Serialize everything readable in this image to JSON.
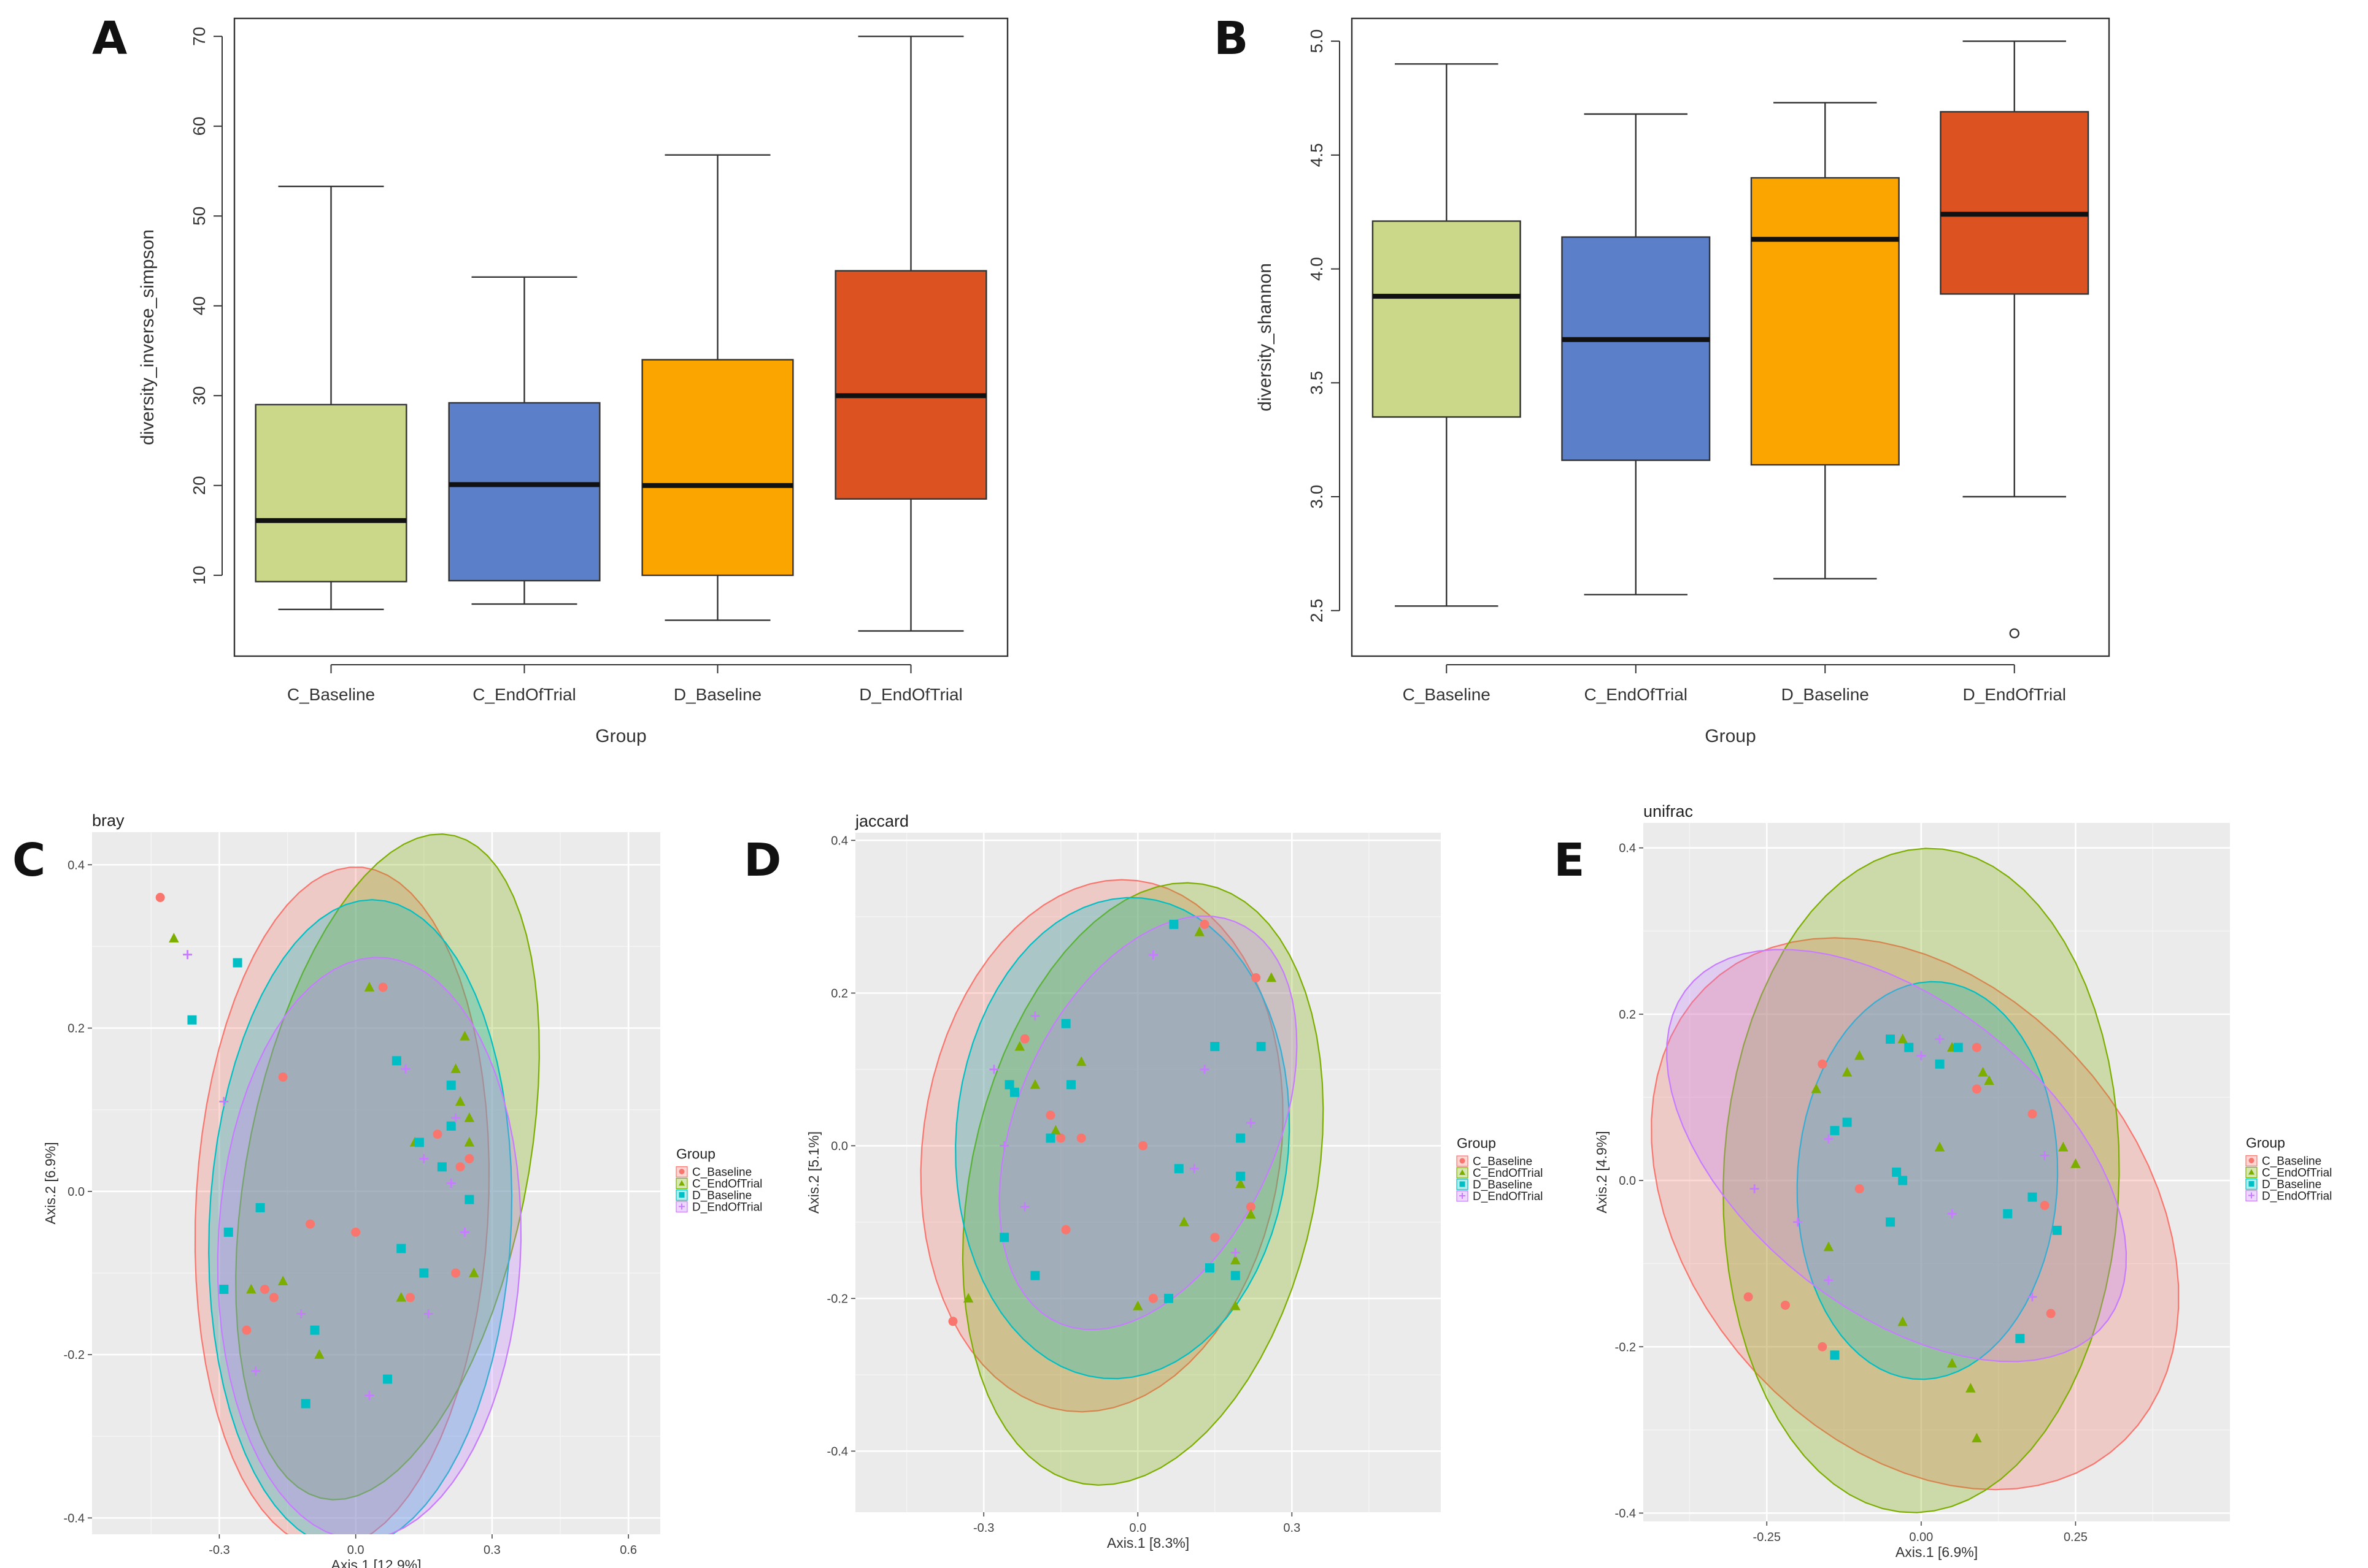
{
  "chart_data": [
    {
      "panel": "A",
      "type": "boxplot",
      "xlabel": "Group",
      "ylabel": "diversity_inverse_simpson",
      "categories": [
        "C_Baseline",
        "C_EndOfTrial",
        "D_Baseline",
        "D_EndOfTrial"
      ],
      "colors": [
        "#cbd889",
        "#5b7fc9",
        "#fba500",
        "#dc5221"
      ],
      "boxes": [
        {
          "min": 6.2,
          "q1": 9.3,
          "median": 16.1,
          "q3": 29.0,
          "max": 53.3,
          "outliers": []
        },
        {
          "min": 6.8,
          "q1": 9.4,
          "median": 20.1,
          "q3": 29.2,
          "max": 43.2,
          "outliers": []
        },
        {
          "min": 5.0,
          "q1": 10.0,
          "median": 20.0,
          "q3": 34.0,
          "max": 56.8,
          "outliers": []
        },
        {
          "min": 3.8,
          "q1": 18.5,
          "median": 30.0,
          "q3": 43.9,
          "max": 70.0,
          "outliers": []
        }
      ],
      "ylim": [
        1.0,
        72.0
      ],
      "yticks": [
        10,
        20,
        30,
        40,
        50,
        60,
        70
      ]
    },
    {
      "panel": "B",
      "type": "boxplot",
      "xlabel": "Group",
      "ylabel": "diversity_shannon",
      "categories": [
        "C_Baseline",
        "C_EndOfTrial",
        "D_Baseline",
        "D_EndOfTrial"
      ],
      "colors": [
        "#cbd889",
        "#5b7fc9",
        "#fba500",
        "#dc5221"
      ],
      "boxes": [
        {
          "min": 2.52,
          "q1": 3.35,
          "median": 3.88,
          "q3": 4.21,
          "max": 4.9,
          "outliers": []
        },
        {
          "min": 2.57,
          "q1": 3.16,
          "median": 3.69,
          "q3": 4.14,
          "max": 4.68,
          "outliers": []
        },
        {
          "min": 2.64,
          "q1": 3.14,
          "median": 4.13,
          "q3": 4.4,
          "max": 4.73,
          "outliers": []
        },
        {
          "min": 3.0,
          "q1": 3.89,
          "median": 4.24,
          "q3": 4.69,
          "max": 5.0,
          "outliers": [
            2.4
          ]
        }
      ],
      "ylim": [
        2.3,
        5.1
      ],
      "yticks": [
        "2.5",
        "3.0",
        "3.5",
        "4.0",
        "4.5",
        "5.0"
      ]
    },
    {
      "panel": "C",
      "type": "scatter",
      "title": "bray",
      "xlabel": "Axis.1   [12.9%]",
      "ylabel": "Axis.2   [6.9%]",
      "xlim": [
        -0.58,
        0.67
      ],
      "ylim": [
        -0.42,
        0.44
      ],
      "xticks": [
        "-0.3",
        "0.0",
        "0.3",
        "0.6"
      ],
      "yticks": [
        "-0.4",
        "-0.2",
        "0.0",
        "0.2",
        "0.4"
      ],
      "ellipses": [
        {
          "group": "C_Baseline",
          "cx": -0.03,
          "cy": -0.02,
          "rx": 0.42,
          "ry": 0.32,
          "angle": 80
        },
        {
          "group": "C_EndOfTrial",
          "cx": 0.07,
          "cy": 0.03,
          "rx": 0.44,
          "ry": 0.29,
          "angle": 60
        },
        {
          "group": "D_Baseline",
          "cx": 0.01,
          "cy": -0.04,
          "rx": 0.4,
          "ry": 0.33,
          "angle": 78
        },
        {
          "group": "D_EndOfTrial",
          "cx": 0.03,
          "cy": -0.07,
          "rx": 0.36,
          "ry": 0.33,
          "angle": 70
        }
      ],
      "points": {
        "C_Baseline": [
          [
            -0.43,
            0.36
          ],
          [
            -0.16,
            0.14
          ],
          [
            -0.1,
            -0.04
          ],
          [
            -0.18,
            -0.13
          ],
          [
            -0.2,
            -0.12
          ],
          [
            -0.24,
            -0.17
          ],
          [
            0.0,
            -0.05
          ],
          [
            0.06,
            0.25
          ],
          [
            0.12,
            -0.13
          ],
          [
            0.18,
            0.07
          ],
          [
            0.23,
            0.03
          ],
          [
            0.22,
            -0.1
          ],
          [
            0.25,
            0.04
          ]
        ],
        "C_EndOfTrial": [
          [
            -0.4,
            0.31
          ],
          [
            0.03,
            0.25
          ],
          [
            0.24,
            0.19
          ],
          [
            0.22,
            0.15
          ],
          [
            0.23,
            0.11
          ],
          [
            0.25,
            0.09
          ],
          [
            0.25,
            0.06
          ],
          [
            0.13,
            0.06
          ],
          [
            -0.16,
            -0.11
          ],
          [
            -0.23,
            -0.12
          ],
          [
            -0.08,
            -0.2
          ],
          [
            0.1,
            -0.13
          ],
          [
            0.26,
            -0.1
          ]
        ],
        "D_Baseline": [
          [
            -0.26,
            0.28
          ],
          [
            -0.36,
            0.21
          ],
          [
            0.09,
            0.16
          ],
          [
            0.21,
            0.13
          ],
          [
            0.21,
            0.08
          ],
          [
            0.19,
            0.03
          ],
          [
            0.14,
            0.06
          ],
          [
            0.25,
            -0.01
          ],
          [
            -0.21,
            -0.02
          ],
          [
            -0.28,
            -0.05
          ],
          [
            0.1,
            -0.07
          ],
          [
            0.15,
            -0.1
          ],
          [
            -0.29,
            -0.12
          ],
          [
            -0.09,
            -0.17
          ],
          [
            -0.11,
            -0.26
          ],
          [
            0.07,
            -0.23
          ]
        ],
        "D_EndOfTrial": [
          [
            -0.37,
            0.29
          ],
          [
            -0.29,
            0.11
          ],
          [
            0.11,
            0.15
          ],
          [
            0.22,
            0.09
          ],
          [
            0.21,
            0.01
          ],
          [
            0.24,
            -0.05
          ],
          [
            0.15,
            0.04
          ],
          [
            -0.12,
            -0.15
          ],
          [
            -0.22,
            -0.22
          ],
          [
            0.03,
            -0.25
          ],
          [
            0.16,
            -0.15
          ]
        ]
      }
    },
    {
      "panel": "D",
      "type": "scatter",
      "title": "jaccard",
      "xlabel": "Axis.1   [8.3%]",
      "ylabel": "Axis.2   [5.1%]",
      "xlim": [
        -0.55,
        0.59
      ],
      "ylim": [
        -0.48,
        0.41
      ],
      "xticks": [
        "-0.3",
        "0.0",
        "0.3"
      ],
      "yticks": [
        "-0.4",
        "-0.2",
        "0.0",
        "0.2",
        "0.4"
      ],
      "ellipses": [
        {
          "group": "C_Baseline",
          "cx": -0.07,
          "cy": 0.0,
          "rx": 0.37,
          "ry": 0.33,
          "angle": 42
        },
        {
          "group": "C_EndOfTrial",
          "cx": 0.01,
          "cy": -0.05,
          "rx": 0.42,
          "ry": 0.32,
          "angle": 58
        },
        {
          "group": "D_Baseline",
          "cx": -0.03,
          "cy": 0.01,
          "rx": 0.33,
          "ry": 0.31,
          "angle": 30
        },
        {
          "group": "D_EndOfTrial",
          "cx": 0.02,
          "cy": 0.03,
          "rx": 0.33,
          "ry": 0.22,
          "angle": 40
        }
      ],
      "points": {
        "C_Baseline": [
          [
            -0.36,
            -0.23
          ],
          [
            -0.22,
            0.14
          ],
          [
            -0.17,
            0.04
          ],
          [
            -0.15,
            0.01
          ],
          [
            -0.14,
            -0.11
          ],
          [
            -0.11,
            0.01
          ],
          [
            0.01,
            0.0
          ],
          [
            0.13,
            0.29
          ],
          [
            0.23,
            0.22
          ],
          [
            0.15,
            -0.12
          ],
          [
            0.22,
            -0.08
          ],
          [
            0.03,
            -0.2
          ]
        ],
        "C_EndOfTrial": [
          [
            -0.33,
            -0.2
          ],
          [
            -0.23,
            0.13
          ],
          [
            -0.2,
            0.08
          ],
          [
            -0.16,
            0.02
          ],
          [
            -0.11,
            0.11
          ],
          [
            0.12,
            0.28
          ],
          [
            0.26,
            0.22
          ],
          [
            0.09,
            -0.1
          ],
          [
            0.2,
            -0.05
          ],
          [
            0.22,
            -0.09
          ],
          [
            0.19,
            -0.15
          ],
          [
            0.0,
            -0.21
          ],
          [
            0.19,
            -0.21
          ]
        ],
        "D_Baseline": [
          [
            -0.25,
            0.08
          ],
          [
            -0.24,
            0.07
          ],
          [
            -0.17,
            0.01
          ],
          [
            -0.14,
            0.16
          ],
          [
            -0.13,
            0.08
          ],
          [
            0.07,
            0.29
          ],
          [
            0.15,
            0.13
          ],
          [
            0.24,
            0.13
          ],
          [
            0.2,
            0.01
          ],
          [
            0.08,
            -0.03
          ],
          [
            0.2,
            -0.04
          ],
          [
            -0.26,
            -0.12
          ],
          [
            -0.2,
            -0.17
          ],
          [
            0.06,
            -0.2
          ],
          [
            0.14,
            -0.16
          ],
          [
            0.19,
            -0.17
          ]
        ],
        "D_EndOfTrial": [
          [
            -0.28,
            0.1
          ],
          [
            -0.2,
            0.17
          ],
          [
            -0.26,
            0.0
          ],
          [
            0.03,
            0.25
          ],
          [
            0.13,
            0.1
          ],
          [
            0.22,
            0.03
          ],
          [
            0.11,
            -0.03
          ],
          [
            -0.22,
            -0.08
          ],
          [
            0.19,
            -0.14
          ]
        ]
      }
    },
    {
      "panel": "E",
      "type": "scatter",
      "title": "unifrac",
      "xlabel": "Axis.1   [6.9%]",
      "ylabel": "Axis.2   [4.9%]",
      "xlim": [
        -0.45,
        0.5
      ],
      "ylim": [
        -0.41,
        0.43
      ],
      "xticks": [
        "-0.25",
        "0.00",
        "0.25"
      ],
      "yticks": [
        "-0.4",
        "-0.2",
        "0.0",
        "0.2",
        "0.4"
      ],
      "ellipses": [
        {
          "group": "C_Baseline",
          "cx": -0.01,
          "cy": -0.04,
          "rx": 0.45,
          "ry": 0.3,
          "angle": -25
        },
        {
          "group": "C_EndOfTrial",
          "cx": 0.0,
          "cy": 0.0,
          "rx": 0.4,
          "ry": 0.32,
          "angle": 85
        },
        {
          "group": "D_Baseline",
          "cx": 0.01,
          "cy": 0.0,
          "rx": 0.24,
          "ry": 0.21,
          "angle": 80
        },
        {
          "group": "D_EndOfTrial",
          "cx": -0.04,
          "cy": 0.03,
          "rx": 0.4,
          "ry": 0.2,
          "angle": -25
        }
      ],
      "points": {
        "C_Baseline": [
          [
            -0.28,
            -0.14
          ],
          [
            -0.22,
            -0.15
          ],
          [
            -0.16,
            0.14
          ],
          [
            -0.1,
            -0.01
          ],
          [
            -0.16,
            -0.2
          ],
          [
            0.09,
            0.16
          ],
          [
            0.18,
            0.08
          ],
          [
            0.2,
            -0.03
          ],
          [
            0.21,
            -0.16
          ],
          [
            0.09,
            0.11
          ]
        ],
        "C_EndOfTrial": [
          [
            -0.15,
            -0.08
          ],
          [
            -0.17,
            0.11
          ],
          [
            -0.12,
            0.13
          ],
          [
            -0.1,
            0.15
          ],
          [
            -0.03,
            0.17
          ],
          [
            0.05,
            0.16
          ],
          [
            0.1,
            0.13
          ],
          [
            0.11,
            0.12
          ],
          [
            0.03,
            0.04
          ],
          [
            0.23,
            0.04
          ],
          [
            0.25,
            0.02
          ],
          [
            -0.03,
            -0.17
          ],
          [
            0.05,
            -0.22
          ],
          [
            0.08,
            -0.25
          ],
          [
            0.09,
            -0.31
          ]
        ],
        "D_Baseline": [
          [
            -0.14,
            0.06
          ],
          [
            -0.12,
            0.07
          ],
          [
            -0.05,
            0.17
          ],
          [
            -0.02,
            0.16
          ],
          [
            0.03,
            0.14
          ],
          [
            0.06,
            0.16
          ],
          [
            -0.04,
            0.01
          ],
          [
            -0.03,
            0.0
          ],
          [
            0.14,
            -0.04
          ],
          [
            0.18,
            -0.02
          ],
          [
            0.22,
            -0.06
          ],
          [
            -0.05,
            -0.05
          ],
          [
            -0.14,
            -0.21
          ],
          [
            0.16,
            -0.19
          ]
        ],
        "D_EndOfTrial": [
          [
            -0.27,
            -0.01
          ],
          [
            -0.2,
            -0.05
          ],
          [
            -0.15,
            0.05
          ],
          [
            0.0,
            0.15
          ],
          [
            0.03,
            0.17
          ],
          [
            0.2,
            0.03
          ],
          [
            0.05,
            -0.04
          ],
          [
            0.18,
            -0.14
          ],
          [
            -0.15,
            -0.12
          ]
        ]
      }
    }
  ],
  "panel_letters": {
    "a": "A",
    "b": "B",
    "c": "C",
    "d": "D",
    "e": "E"
  },
  "legend": {
    "title": "Group",
    "entries": [
      "C_Baseline",
      "C_EndOfTrial",
      "D_Baseline",
      "D_EndOfTrial"
    ],
    "colors": [
      "#f8766d",
      "#7cae00",
      "#00bfc4",
      "#c77cff"
    ]
  },
  "ellipse_colors": [
    "#f8766d",
    "#7cae00",
    "#00bfc4",
    "#c77cff"
  ]
}
